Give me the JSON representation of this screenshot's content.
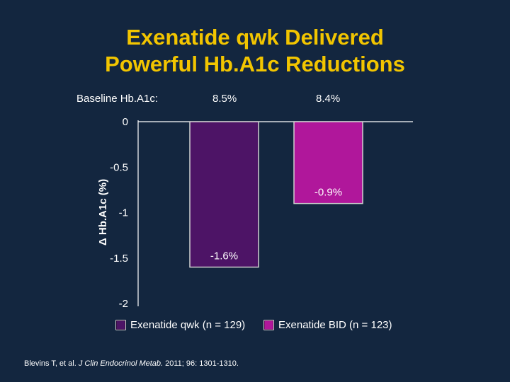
{
  "slide": {
    "title_line1": "Exenatide qwk Delivered",
    "title_line2": "Powerful Hb.A1c Reductions",
    "baseline_label": "Baseline Hb.A1c:",
    "baseline_values": [
      "8.5%",
      "8.4%"
    ],
    "citation_prefix": "Blevins T, et al. ",
    "citation_journal": "J Clin Endocrinol Metab.",
    "citation_suffix": " 2011; 96: 1301-1310."
  },
  "colors": {
    "background": "#13263f",
    "title": "#f2c500",
    "bar1": "#4d1466",
    "bar2": "#b0179b"
  },
  "chart_data": {
    "type": "bar",
    "title": "",
    "xlabel": "",
    "ylabel": "Δ Hb.A1c (%)",
    "ylim": [
      -2,
      0
    ],
    "yticks": [
      0,
      -0.5,
      -1,
      -1.5,
      -2
    ],
    "ytick_labels": [
      "0",
      "-0.5",
      "-1",
      "-1.5",
      "-2"
    ],
    "categories": [
      "Exenatide qwk (n = 129)",
      "Exenatide BID (n = 123)"
    ],
    "values": [
      -1.6,
      -0.9
    ],
    "data_labels": [
      "-1.6%",
      "-0.9%"
    ],
    "legend": [
      "Exenatide qwk (n = 129)",
      "Exenatide BID (n = 123)"
    ],
    "grid": false
  }
}
